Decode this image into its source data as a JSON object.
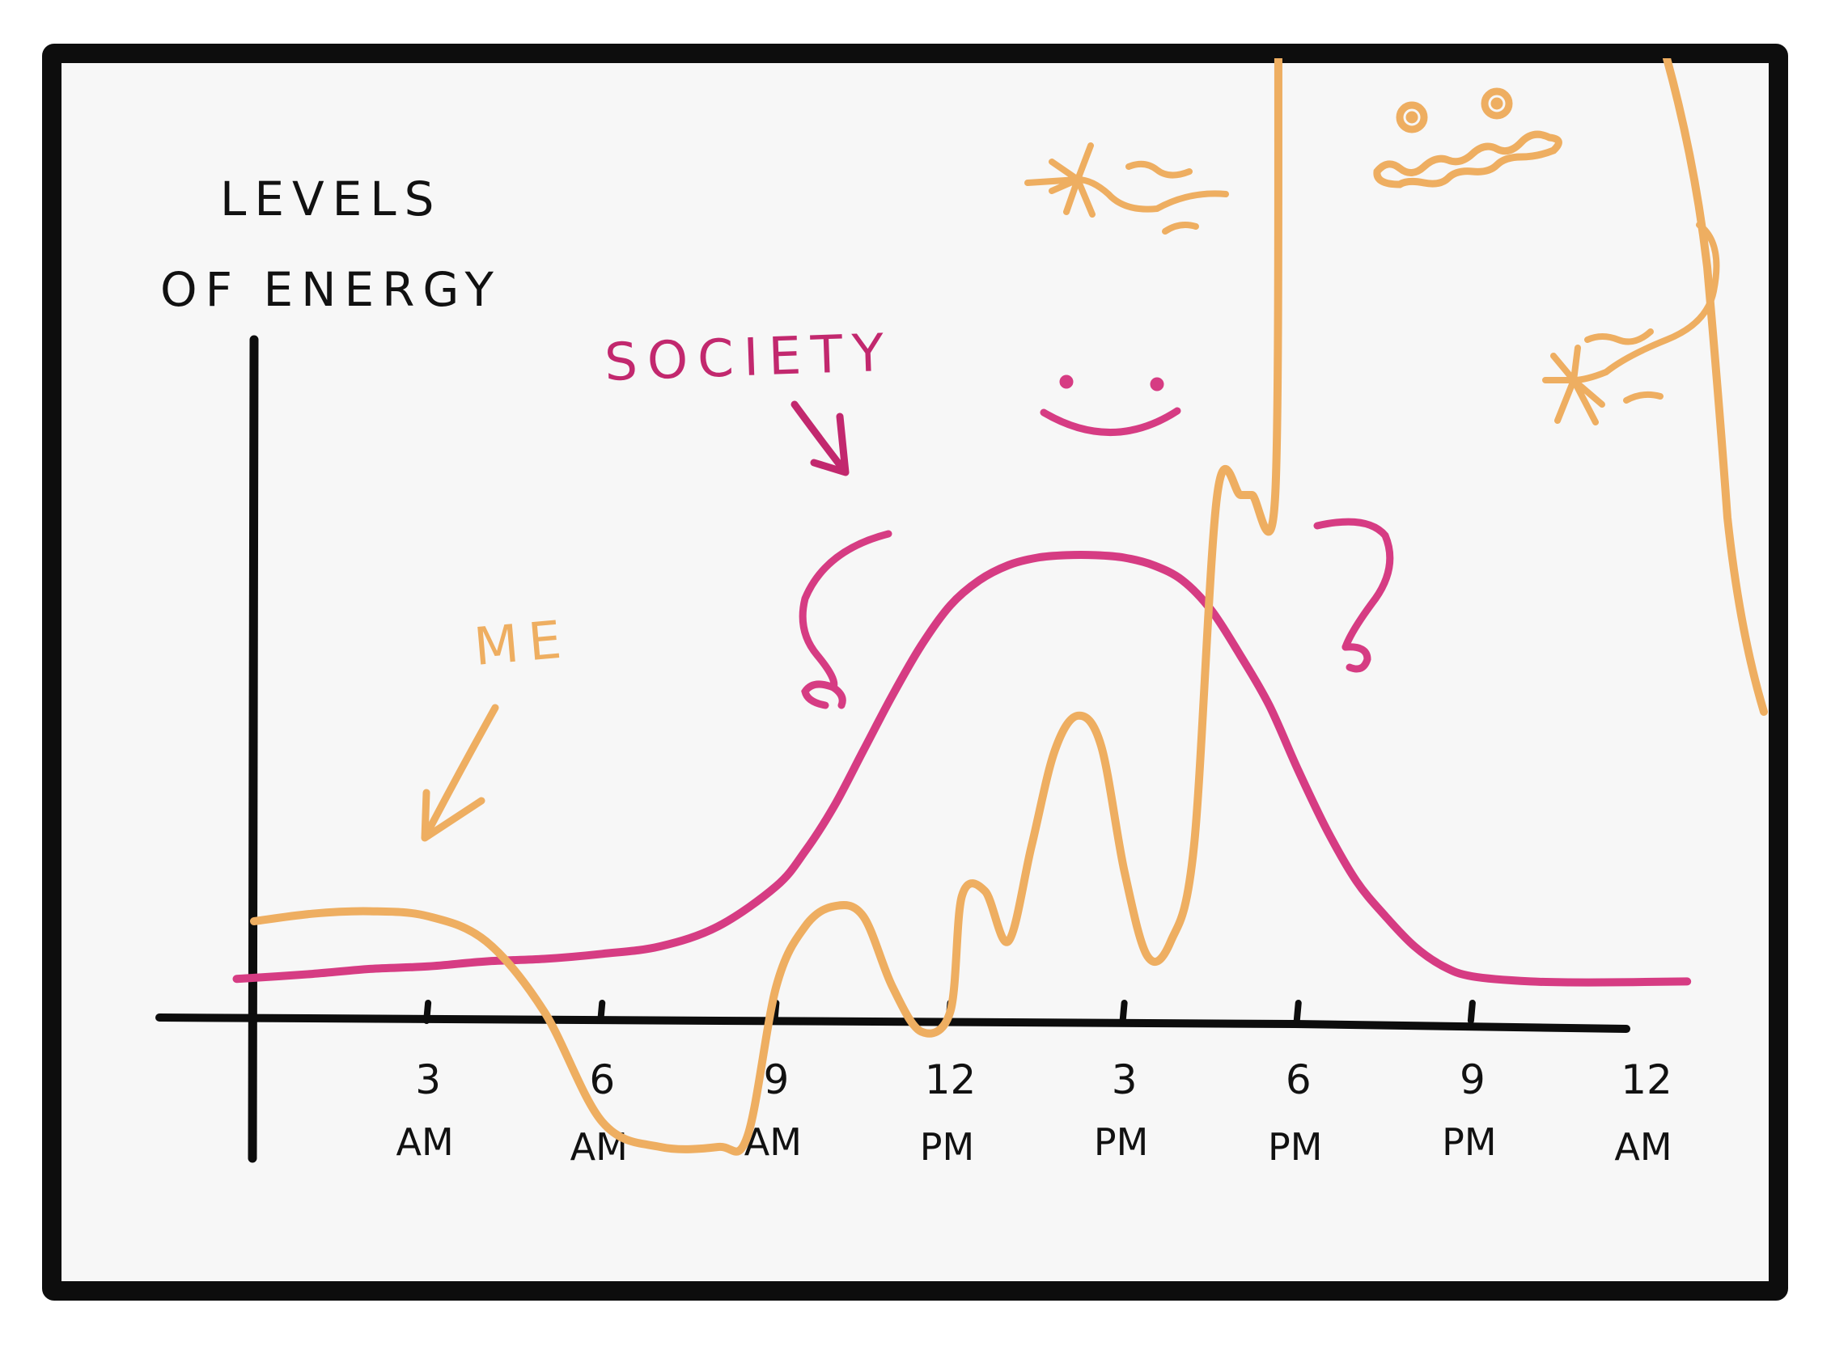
{
  "chart_data": {
    "type": "line",
    "title": "",
    "xlabel": "",
    "ylabel": "LEVELS OF ENERGY",
    "ylabel_lines": [
      "LEVELS",
      "OF ENERGY"
    ],
    "x_ticks": [
      {
        "top": "3",
        "bottom": "AM"
      },
      {
        "top": "6",
        "bottom": "AM"
      },
      {
        "top": "9",
        "bottom": "AM"
      },
      {
        "top": "12",
        "bottom": "PM"
      },
      {
        "top": "3",
        "bottom": "PM"
      },
      {
        "top": "6",
        "bottom": "PM"
      },
      {
        "top": "9",
        "bottom": "PM"
      },
      {
        "top": "12",
        "bottom": "AM"
      }
    ],
    "xlim": [
      0,
      24
    ],
    "ylim": [
      -3,
      10
    ],
    "x_unit": "hours since midnight",
    "series": [
      {
        "name": "SOCIETY",
        "color": "#d63c83",
        "x": [
          -0.3,
          1,
          2,
          3,
          4,
          5,
          6,
          7,
          8,
          9,
          9.5,
          10,
          10.5,
          11,
          11.5,
          12,
          12.5,
          13,
          13.5,
          14,
          14.5,
          15,
          15.5,
          16,
          16.5,
          17,
          17.5,
          18,
          18.5,
          19,
          19.5,
          20,
          20.5,
          21,
          22,
          23,
          24.7
        ],
        "values": [
          0.35,
          0.45,
          0.55,
          0.6,
          0.7,
          0.75,
          0.85,
          1.0,
          1.4,
          2.2,
          2.9,
          3.8,
          4.9,
          6.0,
          7.0,
          7.8,
          8.3,
          8.6,
          8.75,
          8.8,
          8.8,
          8.75,
          8.6,
          8.3,
          7.7,
          6.8,
          5.8,
          4.5,
          3.3,
          2.3,
          1.6,
          1.0,
          0.6,
          0.4,
          0.3,
          0.28,
          0.3
        ]
      },
      {
        "name": "ME",
        "color": "#eeae61",
        "x": [
          0,
          1,
          2,
          3,
          4,
          5,
          6,
          7,
          8,
          8.5,
          9,
          9.5,
          10,
          10.5,
          11,
          11.5,
          12,
          12.2,
          12.6,
          13,
          13.4,
          13.8,
          14.2,
          14.6,
          15,
          15.4,
          15.8,
          16.2,
          16.6,
          17,
          17.2,
          17.6
        ],
        "values": [
          1.5,
          1.65,
          1.7,
          1.6,
          1.1,
          -0.3,
          -2.5,
          -3.0,
          -3.0,
          -2.8,
          0.2,
          1.4,
          1.8,
          1.6,
          0.2,
          -0.7,
          -0.3,
          2.0,
          2.1,
          1.1,
          3.0,
          4.9,
          5.6,
          5.0,
          2.5,
          0.8,
          1.1,
          3.0,
          10.0,
          10.0,
          10.0,
          10.0
        ]
      }
    ],
    "annotations": [
      "SOCIETY",
      "ME"
    ],
    "grid": false,
    "legend": "none"
  }
}
